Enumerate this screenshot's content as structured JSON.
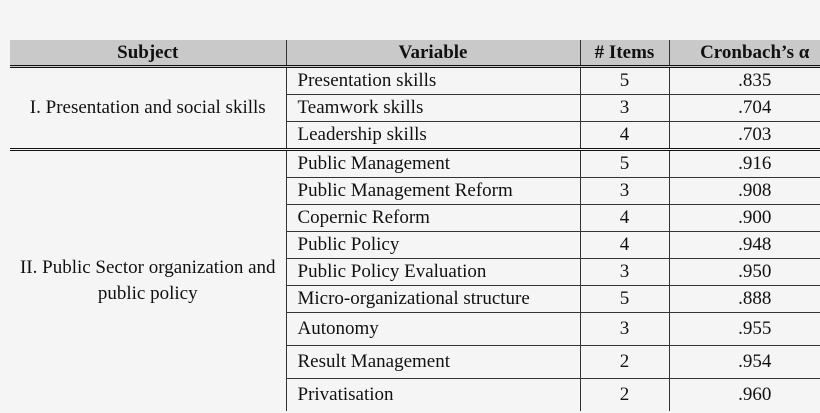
{
  "table": {
    "headers": [
      "Subject",
      "Variable",
      "# Items",
      "Cronbach’s α"
    ],
    "groups": [
      {
        "subject": "I. Presentation and social skills",
        "rows": [
          {
            "variable": "Presentation skills",
            "items": "5",
            "alpha": ".835"
          },
          {
            "variable": "Teamwork skills",
            "items": "3",
            "alpha": ".704"
          },
          {
            "variable": "Leadership skills",
            "items": "4",
            "alpha": ".703"
          }
        ]
      },
      {
        "subject": "II. Public Sector organization and public policy",
        "rows": [
          {
            "variable": "Public Management",
            "items": "5",
            "alpha": ".916"
          },
          {
            "variable": "Public Management Reform",
            "items": "3",
            "alpha": ".908"
          },
          {
            "variable": "Copernic Reform",
            "items": "4",
            "alpha": ".900"
          },
          {
            "variable": "Public Policy",
            "items": "4",
            "alpha": ".948"
          },
          {
            "variable": "Public Policy Evaluation",
            "items": "3",
            "alpha": ".950"
          },
          {
            "variable": "Micro-organizational structure",
            "items": "5",
            "alpha": ".888"
          },
          {
            "variable": "Autonomy",
            "items": "3",
            "alpha": ".955"
          },
          {
            "variable": "Result Management",
            "items": "2",
            "alpha": ".954"
          },
          {
            "variable": "Privatisation",
            "items": "2",
            "alpha": ".960"
          }
        ]
      }
    ]
  }
}
